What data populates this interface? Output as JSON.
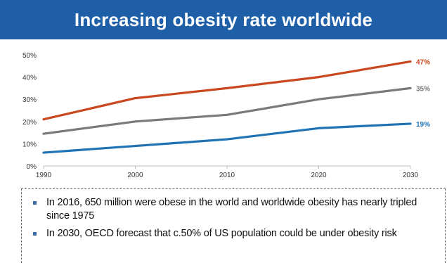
{
  "header": {
    "title": "Increasing obesity rate worldwide"
  },
  "chart_data": {
    "type": "line",
    "title": "",
    "xlabel": "",
    "ylabel": "",
    "x": [
      1990,
      2000,
      2010,
      2020,
      2030
    ],
    "x_tick_labels": [
      "1990",
      "2000",
      "2010",
      "2020",
      "2030"
    ],
    "y_tick_labels": [
      "0%",
      "10%",
      "20%",
      "30%",
      "40%",
      "50%"
    ],
    "ylim": [
      0,
      50
    ],
    "grid": false,
    "legend": "none",
    "series": [
      {
        "values": [
          21,
          30.5,
          35,
          40,
          47
        ],
        "color": "#c9471e",
        "end_label": "47%"
      },
      {
        "values": [
          14.5,
          20,
          23,
          30,
          35
        ],
        "color": "#7a7a7a",
        "end_label": "35%"
      },
      {
        "values": [
          6,
          9,
          12,
          17,
          19
        ],
        "color": "#1f73b4",
        "end_label": "19%"
      }
    ]
  },
  "notes": [
    {
      "text": "In 2016, 650 million were obese in the world and worldwide obesity has nearly tripled since 1975"
    },
    {
      "text": "In 2030, OECD forecast that  c.50% of US population could be under obesity risk"
    }
  ]
}
